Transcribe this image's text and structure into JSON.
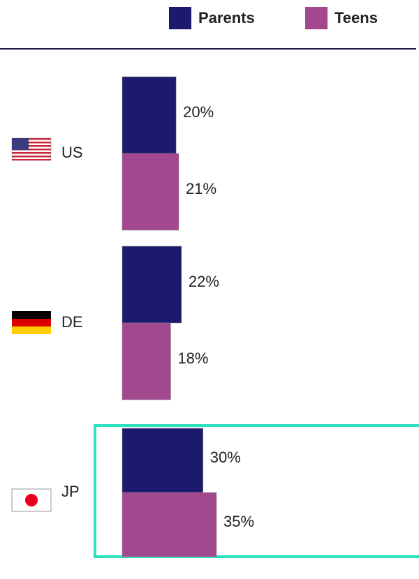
{
  "chart_data": {
    "type": "bar",
    "orientation": "horizontal",
    "categories": [
      "US",
      "DE",
      "JP"
    ],
    "series": [
      {
        "name": "Parents",
        "color": "#1c1a6e",
        "values": [
          20,
          22,
          30
        ],
        "value_labels": [
          "20%",
          "22%",
          "30%"
        ]
      },
      {
        "name": "Teens",
        "color": "#a3478f",
        "values": [
          21,
          18,
          35
        ],
        "value_labels": [
          "21%",
          "18%",
          "35%"
        ]
      }
    ]
  }
}
